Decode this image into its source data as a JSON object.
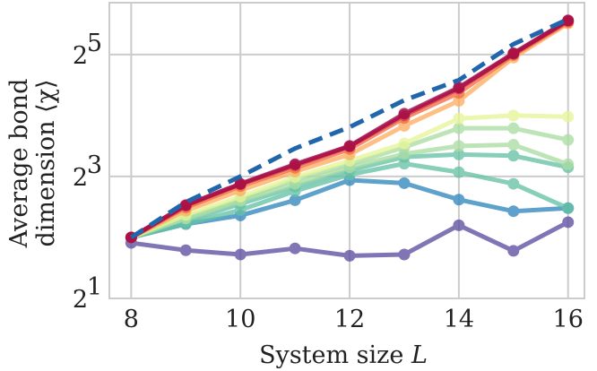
{
  "chart_data": {
    "type": "line",
    "title": "",
    "xlabel": "System size",
    "xlabel_var": "L",
    "ylabel_line1": "Average bond",
    "ylabel_line2": "dimension ⟨χ⟩",
    "yscale": "log2",
    "xlim": [
      7.6,
      16.3
    ],
    "ylim_log2": [
      1.0,
      5.85
    ],
    "x": [
      8,
      9,
      10,
      11,
      12,
      13,
      14,
      15,
      16
    ],
    "xticks": [
      8,
      10,
      12,
      14,
      16
    ],
    "xtick_labels": [
      "8",
      "10",
      "12",
      "14",
      "16"
    ],
    "yticks_log2": [
      1,
      3,
      5
    ],
    "ytick_bases": [
      "2",
      "2",
      "2"
    ],
    "ytick_exps": [
      "1",
      "3",
      "5"
    ],
    "grid": true,
    "reference": {
      "name": "bound",
      "style": "dashed",
      "color": "#2166ac",
      "log2_values": [
        2.0,
        2.58,
        3.0,
        3.46,
        3.81,
        4.25,
        4.58,
        5.17,
        5.58
      ]
    },
    "series": [
      {
        "color": "#5e4fa2",
        "log2_values": [
          1.91,
          1.79,
          1.72,
          1.82,
          1.7,
          1.72,
          2.2,
          1.78,
          2.25
        ]
      },
      {
        "color": "#3288bd",
        "log2_values": [
          2.0,
          2.22,
          2.36,
          2.61,
          2.94,
          2.89,
          2.62,
          2.43,
          2.48
        ]
      },
      {
        "color": "#66c2a5",
        "log2_values": [
          2.0,
          2.22,
          2.45,
          2.76,
          3.03,
          3.21,
          3.07,
          2.88,
          2.48
        ]
      },
      {
        "color": "#66c2a5",
        "log2_values": [
          2.0,
          2.27,
          2.55,
          2.83,
          3.1,
          3.32,
          3.36,
          3.34,
          3.15
        ]
      },
      {
        "color": "#abdda4",
        "log2_values": [
          2.0,
          2.31,
          2.6,
          2.88,
          3.15,
          3.37,
          3.5,
          3.52,
          3.2
        ]
      },
      {
        "color": "#abdda4",
        "log2_values": [
          2.0,
          2.33,
          2.62,
          2.95,
          3.2,
          3.48,
          3.79,
          3.79,
          3.6
        ]
      },
      {
        "color": "#e6f598",
        "log2_values": [
          2.0,
          2.37,
          2.67,
          2.99,
          3.26,
          3.54,
          3.95,
          4.0,
          3.98
        ]
      },
      {
        "color": "#fdae61",
        "log2_values": [
          2.0,
          2.44,
          2.77,
          3.08,
          3.36,
          3.83,
          4.24,
          4.95,
          5.51
        ]
      },
      {
        "color": "#f46d43",
        "log2_values": [
          2.0,
          2.49,
          2.84,
          3.14,
          3.45,
          3.96,
          4.37,
          4.99,
          5.53
        ]
      },
      {
        "color": "#d53e4f",
        "log2_values": [
          2.0,
          2.52,
          2.87,
          3.18,
          3.49,
          4.0,
          4.44,
          5.01,
          5.55
        ]
      },
      {
        "color": "#9e0142",
        "log2_values": [
          2.0,
          2.53,
          2.88,
          3.2,
          3.5,
          4.03,
          4.46,
          5.02,
          5.56
        ]
      }
    ]
  }
}
